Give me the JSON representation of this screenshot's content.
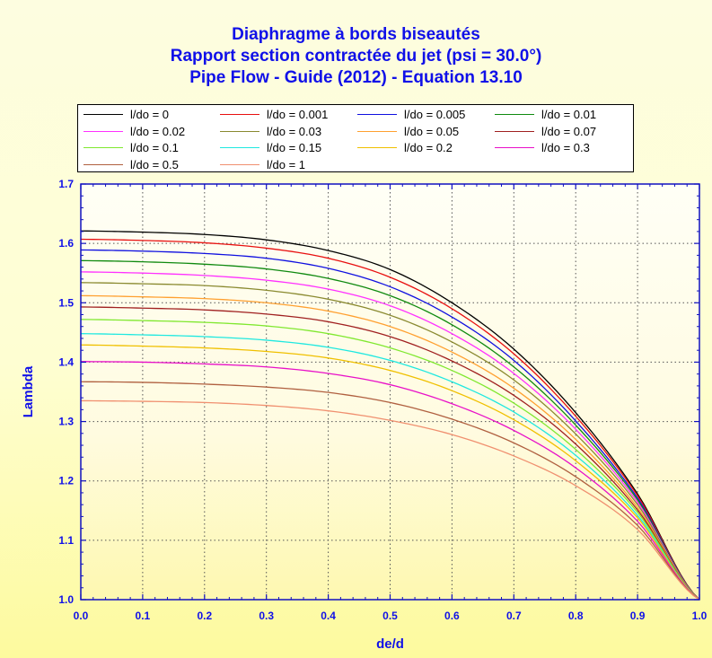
{
  "chart_data": {
    "type": "line",
    "title_lines": [
      "Diaphragme à bords biseautés",
      "Rapport section contractée du jet (psi = 30.0°)",
      "Pipe Flow - Guide (2012) - Equation 13.10"
    ],
    "xlabel": "de/d",
    "ylabel": "Lambda",
    "xlim": [
      0.0,
      1.0
    ],
    "ylim": [
      1.0,
      1.7
    ],
    "xticks": [
      "0.0",
      "0.1",
      "0.2",
      "0.3",
      "0.4",
      "0.5",
      "0.6",
      "0.7",
      "0.8",
      "0.9",
      "1.0"
    ],
    "yticks": [
      "1.0",
      "1.1",
      "1.2",
      "1.3",
      "1.4",
      "1.5",
      "1.6",
      "1.7"
    ],
    "grid": true,
    "legend_position": "top",
    "x": [
      0.0,
      0.1,
      0.2,
      0.3,
      0.4,
      0.5,
      0.6,
      0.7,
      0.8,
      0.9,
      1.0
    ],
    "series": [
      {
        "name": "l/do = 0",
        "color": "#000000",
        "values": [
          1.621,
          1.619,
          1.615,
          1.606,
          1.588,
          1.556,
          1.5,
          1.422,
          1.315,
          1.178,
          1.0
        ]
      },
      {
        "name": "l/do = 0.001",
        "color": "#e81010",
        "values": [
          1.607,
          1.605,
          1.601,
          1.592,
          1.575,
          1.543,
          1.49,
          1.414,
          1.309,
          1.175,
          1.0
        ]
      },
      {
        "name": "l/do = 0.005",
        "color": "#1010e0",
        "values": [
          1.589,
          1.587,
          1.583,
          1.575,
          1.558,
          1.527,
          1.476,
          1.403,
          1.301,
          1.171,
          1.0
        ]
      },
      {
        "name": "l/do = 0.01",
        "color": "#108a10",
        "values": [
          1.571,
          1.569,
          1.565,
          1.557,
          1.541,
          1.512,
          1.463,
          1.392,
          1.294,
          1.168,
          1.0
        ]
      },
      {
        "name": "l/do = 0.02",
        "color": "#ff30ff",
        "values": [
          1.552,
          1.55,
          1.546,
          1.538,
          1.523,
          1.495,
          1.448,
          1.381,
          1.287,
          1.164,
          1.0
        ]
      },
      {
        "name": "l/do = 0.03",
        "color": "#8a8a30",
        "values": [
          1.534,
          1.532,
          1.529,
          1.521,
          1.506,
          1.479,
          1.434,
          1.37,
          1.279,
          1.16,
          1.0
        ]
      },
      {
        "name": "l/do = 0.05",
        "color": "#ffa030",
        "values": [
          1.512,
          1.51,
          1.507,
          1.5,
          1.486,
          1.46,
          1.417,
          1.356,
          1.27,
          1.155,
          1.0
        ]
      },
      {
        "name": "l/do = 0.07",
        "color": "#a02020",
        "values": [
          1.493,
          1.491,
          1.488,
          1.481,
          1.468,
          1.443,
          1.402,
          1.344,
          1.262,
          1.151,
          1.0
        ]
      },
      {
        "name": "l/do = 0.1",
        "color": "#80e830",
        "values": [
          1.472,
          1.47,
          1.467,
          1.461,
          1.448,
          1.424,
          1.386,
          1.331,
          1.253,
          1.147,
          1.0
        ]
      },
      {
        "name": "l/do = 0.15",
        "color": "#20e8e0",
        "values": [
          1.448,
          1.446,
          1.443,
          1.437,
          1.425,
          1.403,
          1.367,
          1.316,
          1.243,
          1.142,
          1.0
        ]
      },
      {
        "name": "l/do = 0.2",
        "color": "#f0c000",
        "values": [
          1.429,
          1.427,
          1.424,
          1.418,
          1.407,
          1.386,
          1.352,
          1.303,
          1.234,
          1.138,
          1.0
        ]
      },
      {
        "name": "l/do = 0.3",
        "color": "#e810c8",
        "values": [
          1.401,
          1.4,
          1.397,
          1.392,
          1.381,
          1.362,
          1.33,
          1.285,
          1.222,
          1.132,
          1.0
        ]
      },
      {
        "name": "l/do = 0.5",
        "color": "#b06040",
        "values": [
          1.367,
          1.366,
          1.363,
          1.358,
          1.349,
          1.332,
          1.304,
          1.264,
          1.207,
          1.125,
          1.0
        ]
      },
      {
        "name": "l/do = 1",
        "color": "#f09070",
        "values": [
          1.335,
          1.334,
          1.332,
          1.327,
          1.318,
          1.302,
          1.278,
          1.242,
          1.192,
          1.118,
          1.0
        ]
      }
    ]
  }
}
